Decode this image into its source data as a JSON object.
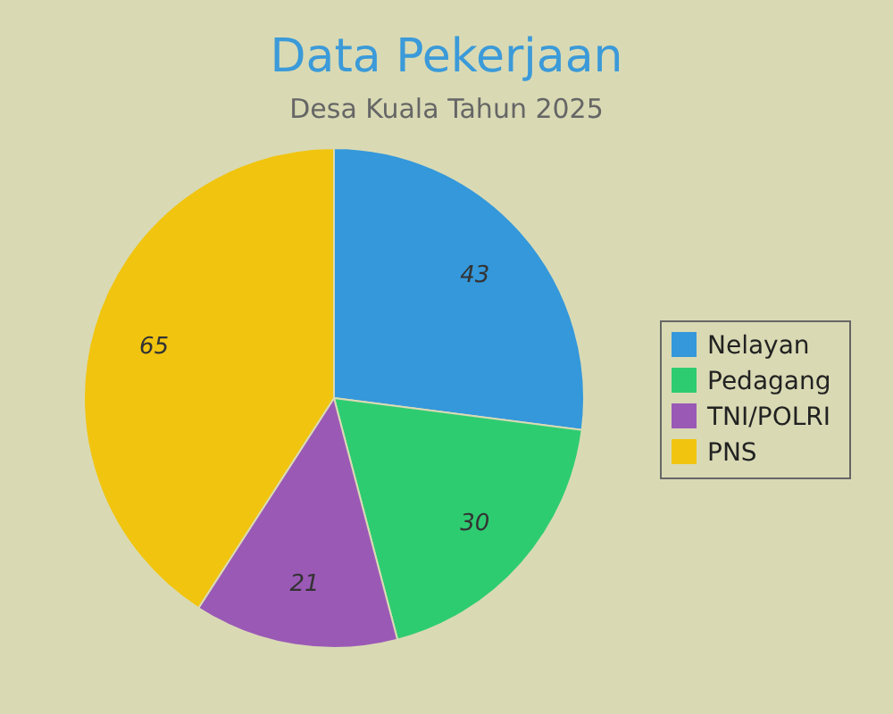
{
  "chart_data": {
    "type": "pie",
    "title": "Data Pekerjaan",
    "subtitle": "Desa Kuala Tahun 2025",
    "categories": [
      "Nelayan",
      "Pedagang",
      "TNI/POLRI",
      "PNS"
    ],
    "values": [
      43,
      30,
      21,
      65
    ],
    "colors": [
      "#3498db",
      "#2ecc71",
      "#9b59b6",
      "#f1c40f"
    ],
    "data_labels": true,
    "legend": "right"
  }
}
